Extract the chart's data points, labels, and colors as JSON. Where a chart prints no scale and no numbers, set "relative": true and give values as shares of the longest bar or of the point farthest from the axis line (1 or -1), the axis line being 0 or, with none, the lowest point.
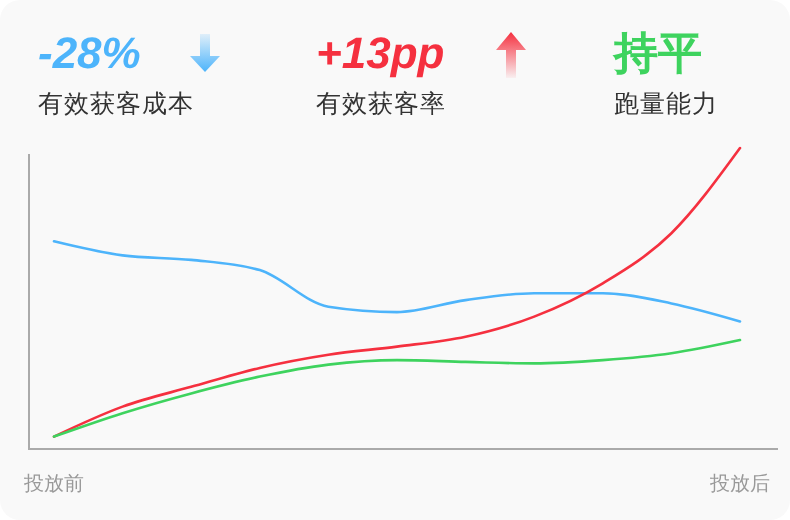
{
  "chart_data": {
    "type": "line",
    "relative": true,
    "marker": "none",
    "line_style": "solid",
    "annotations": [
      "-28%",
      "有效获客成本",
      "+13pp",
      "有效获客率",
      "持平",
      "跑量能力"
    ],
    "categories": [
      "投放前",
      null,
      null,
      null,
      null,
      null,
      null,
      null,
      null,
      null,
      "投放后"
    ],
    "series": [
      {
        "color": "#4db4fb",
        "values": [
          0.689,
          0.642,
          0.627,
          0.593,
          0.471,
          0.453,
          0.493,
          0.516,
          0.516,
          0.482,
          0.422
        ]
      },
      {
        "color": "#f5303f",
        "values": [
          0.038,
          0.138,
          0.204,
          0.267,
          0.311,
          0.338,
          0.371,
          0.438,
          0.549,
          0.716,
          1
        ]
      },
      {
        "color": "#3ed35e",
        "values": [
          0.038,
          0.116,
          0.182,
          0.238,
          0.278,
          0.293,
          0.287,
          0.282,
          0.293,
          0.316,
          0.36
        ]
      }
    ]
  }
}
